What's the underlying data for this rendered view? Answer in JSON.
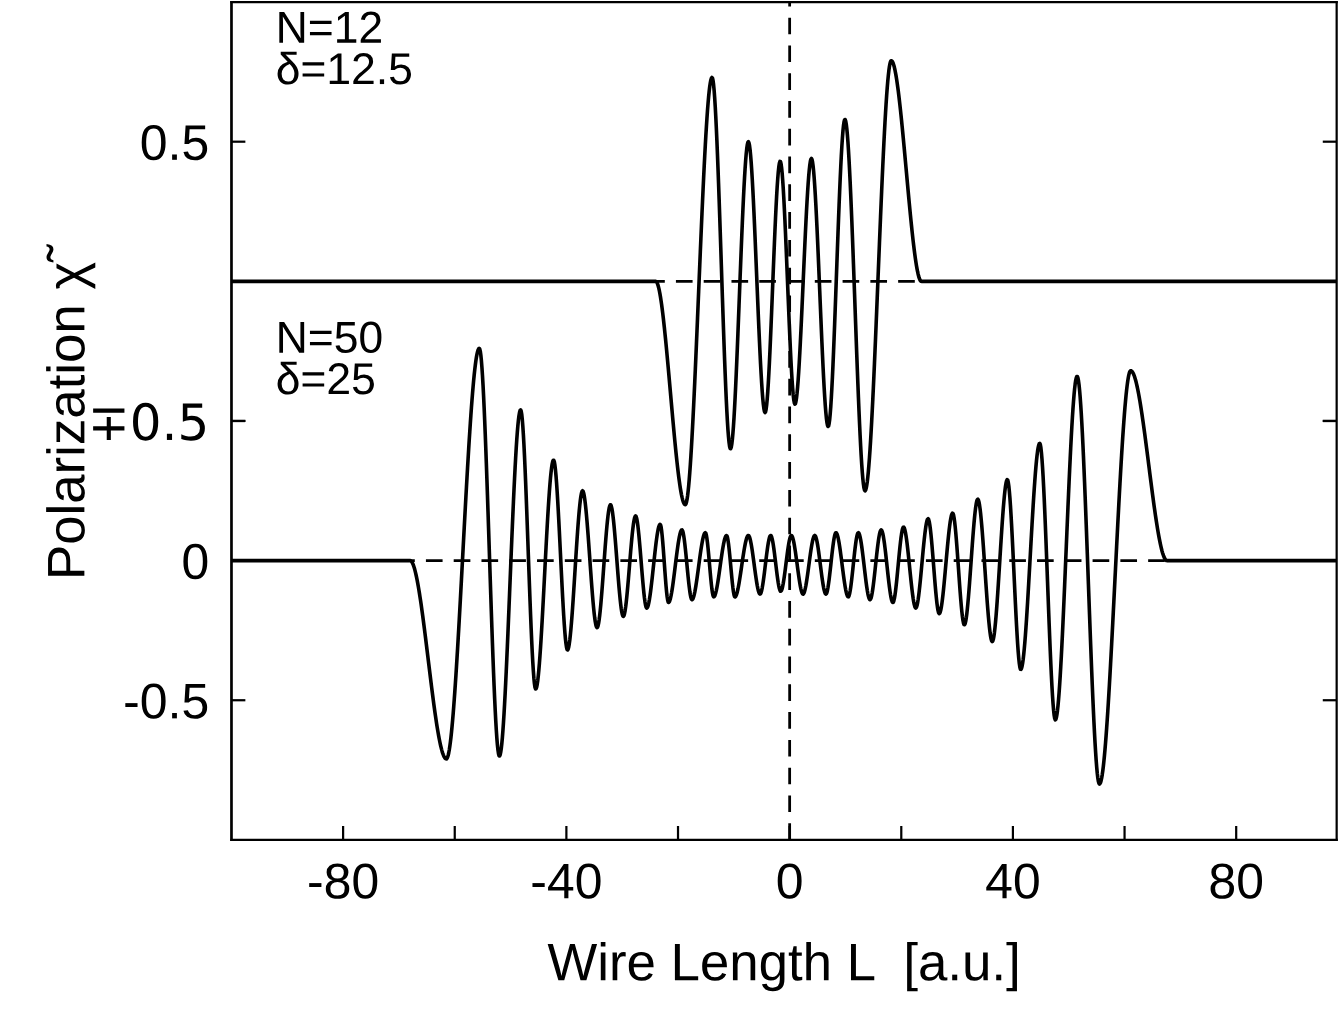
{
  "chart_data": [
    {
      "type": "line",
      "annotations": [
        "N=12\nδ=12.5"
      ],
      "xlim": [
        -100,
        98
      ],
      "ylim": [
        -2.0,
        1.0
      ],
      "yticks": [
        {
          "value": -0.5,
          "label": "∓0.5"
        },
        0.5
      ],
      "tick_labels": "y",
      "grid": false,
      "legend": false,
      "marker": "none",
      "line_style": "solid",
      "series": [
        {
          "color": "#000000",
          "x": [
            -100,
            -24,
            -18.7,
            -13.9,
            -10.6,
            -7.4,
            -4.4,
            -1.7,
            0.95,
            3.9,
            6.9,
            9.9,
            13.5,
            18.2,
            23.6,
            98
          ],
          "values": [
            0,
            0,
            -0.8,
            0.73,
            -0.6,
            0.5,
            -0.47,
            0.43,
            -0.44,
            0.44,
            -0.52,
            0.58,
            -0.75,
            0.79,
            0,
            0
          ]
        }
      ],
      "ref_lines": [
        {
          "axis": "y",
          "value": 0,
          "color": "#000000",
          "line_style": "dashed"
        },
        {
          "axis": "x",
          "value": 0,
          "color": "#000000",
          "line_style": "dashed"
        }
      ]
    },
    {
      "type": "line",
      "annotations": [
        "N=50\nδ=25"
      ],
      "xlabel": "Wire Length L  [a.u.]",
      "ylabel": "Polarization χ̃",
      "xlim": [
        -100,
        98
      ],
      "xticks": [
        -80,
        {
          "value": -60,
          "label": null
        },
        -40,
        {
          "value": -20,
          "label": null
        },
        0,
        {
          "value": 20,
          "label": null
        },
        40,
        {
          "value": 60,
          "label": null
        },
        80
      ],
      "ylim": [
        -1.0,
        2.0
      ],
      "yticks": [
        -0.5,
        0,
        {
          "value": 0.5,
          "label": null
        }
      ],
      "grid": false,
      "legend": false,
      "marker": "none",
      "line_style": "solid",
      "series": [
        {
          "color": "#000000",
          "x": [
            -100,
            -68,
            -61.5,
            -55.6,
            -52.0,
            -48.2,
            -45.5,
            -42.3,
            -39.8,
            -37.1,
            -34.5,
            -32.1,
            -29.8,
            -27.6,
            -25.6,
            -23.2,
            -21.7,
            -19.3,
            -17.5,
            -15.1,
            -13.6,
            -11.3,
            -9.8,
            -7.4,
            -5.3,
            -3.4,
            -1.6,
            0.3,
            2.4,
            4.5,
            6.5,
            8.3,
            10.5,
            12.3,
            14.4,
            16.4,
            18.5,
            20.4,
            22.6,
            24.8,
            26.8,
            29.2,
            31.3,
            33.7,
            36.3,
            39.0,
            41.4,
            44.8,
            47.6,
            51.5,
            55.5,
            61.1,
            67.6,
            98
          ],
          "values": [
            0,
            0,
            -0.71,
            0.76,
            -0.7,
            0.54,
            -0.46,
            0.36,
            -0.32,
            0.25,
            -0.24,
            0.2,
            -0.2,
            0.16,
            -0.17,
            0.13,
            -0.15,
            0.11,
            -0.14,
            0.1,
            -0.13,
            0.09,
            -0.13,
            0.09,
            -0.12,
            0.09,
            -0.11,
            0.09,
            -0.12,
            0.09,
            -0.12,
            0.1,
            -0.13,
            0.1,
            -0.14,
            0.11,
            -0.15,
            0.12,
            -0.17,
            0.15,
            -0.19,
            0.17,
            -0.23,
            0.22,
            -0.29,
            0.29,
            -0.39,
            0.42,
            -0.57,
            0.66,
            -0.8,
            0.68,
            0,
            0
          ]
        }
      ],
      "ref_lines": [
        {
          "axis": "y",
          "value": 0,
          "color": "#000000",
          "line_style": "dashed"
        }
      ]
    }
  ]
}
